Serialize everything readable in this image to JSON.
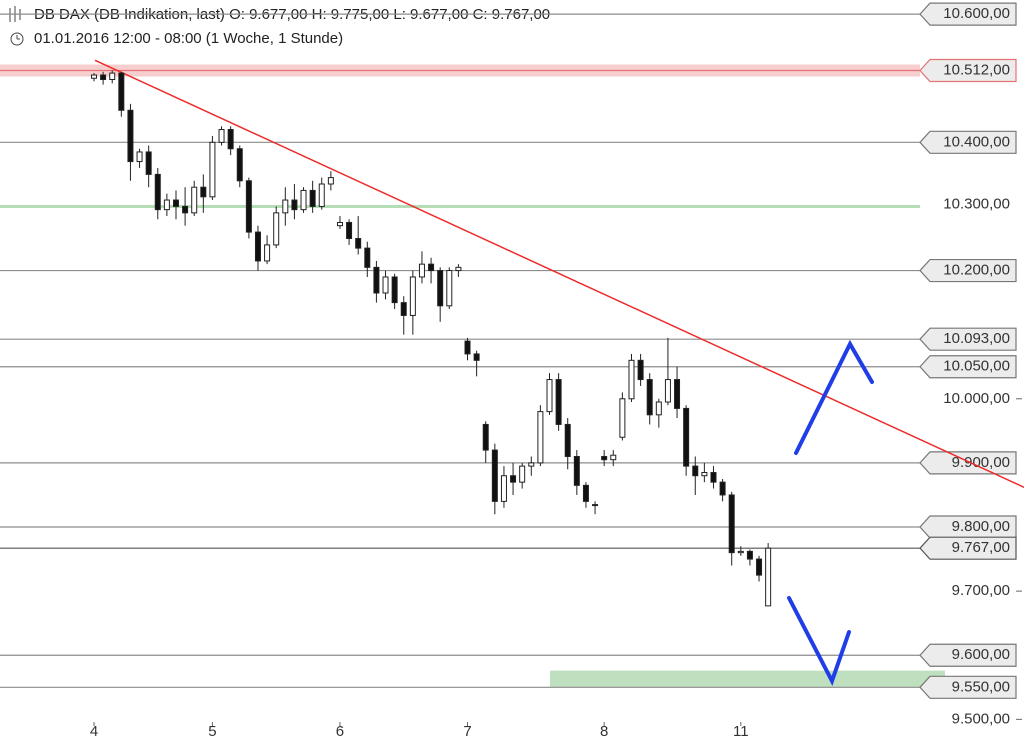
{
  "chart_data": {
    "type": "candlestick",
    "title": "DB DAX (DB Indikation, last)  O: 9.677,00  H: 9.775,00  L: 9.677,00  C: 9.767,00",
    "subtitle": "01.01.2016 12:00 - 08:00 (1 Woche, 1 Stunde)",
    "categories": [
      "4",
      null,
      null,
      null,
      null,
      null,
      null,
      null,
      null,
      null,
      null,
      null,
      null,
      "5",
      null,
      null,
      null,
      null,
      null,
      null,
      null,
      null,
      null,
      null,
      null,
      null,
      null,
      "6",
      null,
      null,
      null,
      null,
      null,
      null,
      null,
      null,
      null,
      null,
      null,
      null,
      null,
      "7",
      null,
      null,
      null,
      null,
      null,
      null,
      null,
      null,
      null,
      null,
      null,
      null,
      null,
      null,
      "8",
      null,
      null,
      null,
      null,
      null,
      null,
      null,
      null,
      null,
      null,
      null,
      null,
      null,
      null,
      "11",
      null,
      null,
      null
    ],
    "open": [
      10500,
      10505,
      10498,
      10508,
      10450,
      10370,
      10385,
      10350,
      10295,
      10310,
      10300,
      10290,
      10330,
      10315,
      10400,
      10420,
      10390,
      10340,
      10260,
      10215,
      10240,
      10290,
      10310,
      10295,
      10325,
      10300,
      10335,
      10270,
      10275,
      10250,
      10235,
      10205,
      10165,
      10190,
      10150,
      10130,
      10190,
      10210,
      10200,
      10145,
      10200,
      10090,
      10070,
      9960,
      9920,
      9840,
      9880,
      9870,
      9895,
      9900,
      9980,
      10030,
      9960,
      9910,
      9865,
      9835,
      9910,
      9905,
      9940,
      10000,
      10060,
      10030,
      9975,
      9995,
      10030,
      9985,
      9895,
      9880,
      9885,
      9870,
      9850,
      9760,
      9762,
      9750,
      9677
    ],
    "high": [
      10508,
      10510,
      10512,
      10510,
      10460,
      10390,
      10395,
      10360,
      10320,
      10325,
      10330,
      10340,
      10350,
      10410,
      10425,
      10425,
      10395,
      10345,
      10270,
      10255,
      10300,
      10330,
      10335,
      10330,
      10340,
      10345,
      10355,
      10285,
      10280,
      10285,
      10245,
      10215,
      10200,
      10195,
      10160,
      10200,
      10230,
      10220,
      10205,
      10205,
      10210,
      10095,
      10075,
      9965,
      9930,
      9895,
      9900,
      9900,
      9910,
      9990,
      10040,
      10040,
      9970,
      9920,
      9870,
      9840,
      9920,
      9920,
      10010,
      10070,
      10070,
      10040,
      10000,
      10095,
      10050,
      9990,
      9910,
      9900,
      9895,
      9875,
      9855,
      9770,
      9765,
      9755,
      9775
    ],
    "low": [
      10495,
      10490,
      10492,
      10440,
      10340,
      10360,
      10330,
      10280,
      10285,
      10280,
      10270,
      10285,
      10290,
      10310,
      10395,
      10380,
      10330,
      10250,
      10200,
      10210,
      10235,
      10270,
      10280,
      10290,
      10290,
      10295,
      10325,
      10265,
      10240,
      10225,
      10190,
      10150,
      10155,
      10140,
      10100,
      10100,
      10180,
      10180,
      10120,
      10140,
      10190,
      10060,
      10035,
      9900,
      9820,
      9830,
      9850,
      9860,
      9880,
      9895,
      9975,
      9950,
      9890,
      9850,
      9830,
      9820,
      9895,
      9895,
      9935,
      9995,
      10020,
      9960,
      9955,
      9990,
      9970,
      9880,
      9850,
      9870,
      9860,
      9840,
      9740,
      9755,
      9740,
      9715,
      9677
    ],
    "close": [
      10505,
      10498,
      10508,
      10450,
      10370,
      10385,
      10350,
      10295,
      10310,
      10300,
      10290,
      10330,
      10315,
      10400,
      10420,
      10390,
      10340,
      10260,
      10215,
      10240,
      10290,
      10310,
      10295,
      10325,
      10300,
      10335,
      10345,
      10275,
      10250,
      10235,
      10205,
      10165,
      10190,
      10150,
      10130,
      10190,
      10210,
      10200,
      10145,
      10200,
      10205,
      10070,
      10060,
      9920,
      9840,
      9880,
      9870,
      9895,
      9900,
      9980,
      10030,
      9960,
      9910,
      9865,
      9840,
      9835,
      9905,
      9912,
      10000,
      10060,
      10030,
      9975,
      9995,
      10030,
      9985,
      9895,
      9880,
      9885,
      9870,
      9850,
      9760,
      9762,
      9750,
      9725,
      9767
    ],
    "ylim": [
      9499,
      10622
    ],
    "yticks": [
      {
        "value": 10000,
        "label": "10.000,00"
      },
      {
        "value": 9700,
        "label": "9.700,00"
      },
      {
        "value": 9500,
        "label": "9.500,00"
      }
    ],
    "levels": [
      {
        "value": 10600,
        "label": "10.600,00",
        "color": "#8c8c8c",
        "boxed": true
      },
      {
        "value": 10512,
        "label": "10.512,00",
        "color": "#e57373",
        "boxed": true
      },
      {
        "value": 10400,
        "label": "10.400,00",
        "color": "#8c8c8c",
        "boxed": true
      },
      {
        "value": 10300,
        "label": "10.300,00",
        "color": "#b5ddb5",
        "boxed": false
      },
      {
        "value": 10200,
        "label": "10.200,00",
        "color": "#8c8c8c",
        "boxed": true
      },
      {
        "value": 10093,
        "label": "10.093,00",
        "color": "#8c8c8c",
        "boxed": true
      },
      {
        "value": 10050,
        "label": "10.050,00",
        "color": "#8c8c8c",
        "boxed": true
      },
      {
        "value": 9900,
        "label": "9.900,00",
        "color": "#8c8c8c",
        "boxed": true
      },
      {
        "value": 9800,
        "label": "9.800,00",
        "color": "#8c8c8c",
        "boxed": true
      },
      {
        "value": 9767,
        "label": "9.767,00",
        "color": "#555555",
        "boxed": true
      },
      {
        "value": 9600,
        "label": "9.600,00",
        "color": "#8c8c8c",
        "boxed": true
      },
      {
        "value": 9550,
        "label": "9.550,00",
        "color": "#8c8c8c",
        "boxed": true
      }
    ],
    "zone": {
      "from": 9550,
      "to": 9576,
      "color": "#bfe0bf"
    },
    "trendline": {
      "start": 10528,
      "end": 9862,
      "color": "#ee2a2a"
    }
  }
}
